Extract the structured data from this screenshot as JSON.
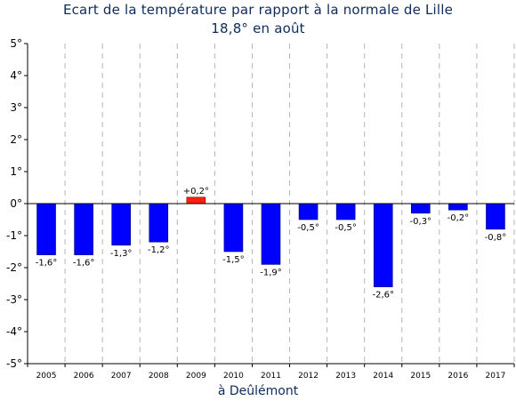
{
  "chart_data": {
    "type": "bar",
    "title": "Ecart de la température par rapport à la normale de Lille",
    "subtitle": "18,8° en août",
    "xlabel": "à Deûlémont",
    "ylabel": "",
    "ylim": [
      -5,
      5
    ],
    "yticks": [
      "5°",
      "4°",
      "3°",
      "2°",
      "1°",
      "0°",
      "-1°",
      "-2°",
      "-3°",
      "-4°",
      "-5°"
    ],
    "categories": [
      "2005",
      "2006",
      "2007",
      "2008",
      "2009",
      "2010",
      "2011",
      "2012",
      "2013",
      "2014",
      "2015",
      "2016",
      "2017"
    ],
    "values": [
      -1.6,
      -1.6,
      -1.3,
      -1.2,
      0.2,
      -1.5,
      -1.9,
      -0.5,
      -0.5,
      -2.6,
      -0.3,
      -0.2,
      -0.8
    ],
    "data_labels": [
      "-1,6°",
      "-1,6°",
      "-1,3°",
      "-1,2°",
      "+0,2°",
      "-1,5°",
      "-1,9°",
      "-0,5°",
      "-0,5°",
      "-2,6°",
      "-0,3°",
      "-0,2°",
      "-0,8°"
    ],
    "colors": {
      "negative": "#0000ff",
      "positive": "#ff2010",
      "title": "#0d2c5c"
    },
    "grid": "vertical-dashed"
  }
}
